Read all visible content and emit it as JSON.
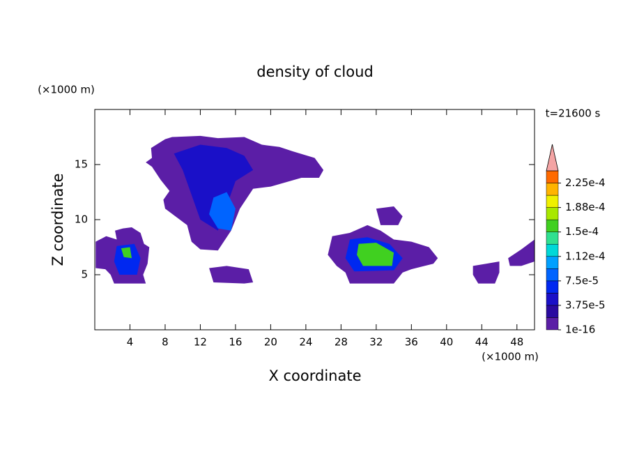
{
  "chart_data": {
    "type": "contour",
    "title": "density of cloud",
    "x_label": "X coordinate",
    "y_label": "Z coordinate",
    "x_unit": "(×1000 m)",
    "y_unit": "(×1000 m)",
    "time_label": "t=21600 s",
    "xlim": [
      0,
      50
    ],
    "ylim": [
      0,
      20
    ],
    "xticks": [
      4,
      8,
      12,
      16,
      20,
      24,
      28,
      32,
      36,
      40,
      44,
      48
    ],
    "yticks": [
      5,
      10,
      15
    ],
    "colorbar": {
      "levels": [
        1e-16,
        1.875e-05,
        3.75e-05,
        5.625e-05,
        7.5e-05,
        9.375e-05,
        0.0001125,
        0.00013125,
        0.00015,
        0.00016875,
        0.0001875,
        0.00020625,
        0.000225,
        0.00024375
      ],
      "colors": [
        "#5b1ea6",
        "#2a0aa0",
        "#1a10c8",
        "#0028f0",
        "#0064ff",
        "#00a0ff",
        "#00d8d8",
        "#30e090",
        "#40d020",
        "#a8e800",
        "#f0f000",
        "#ffb400",
        "#ff6a00"
      ],
      "over_color": "#f4a4a4",
      "ticks": [
        1e-16,
        {
          "value": 3.75e-05,
          "label": "3.75e-5"
        },
        {
          "value": 7.5e-05,
          "label": "7.5e-5"
        },
        {
          "value": 0.0001125,
          "label": "1.12e-4"
        },
        {
          "value": 0.00015,
          "label": "1.5e-4"
        },
        {
          "value": 0.0001875,
          "label": "1.88e-4"
        },
        {
          "value": 0.000225,
          "label": "2.25e-4"
        }
      ]
    },
    "contours": [
      {
        "level": 0,
        "x": [
          1.3,
          2.5,
          2.3,
          3.2,
          4.2,
          5.2,
          5.6,
          6.2,
          6,
          5.5,
          5.8,
          4.5,
          2.2,
          1.8,
          1.2,
          0.1,
          0.1
        ],
        "y": [
          8.5,
          8.2,
          9,
          9.2,
          9.3,
          8.8,
          7.8,
          7.5,
          6,
          5,
          4.2,
          4.2,
          4.2,
          5,
          5.5,
          5.6,
          8
        ]
      },
      {
        "level": 3,
        "x": [
          2.5,
          4.5,
          5.2,
          4.8,
          2.8,
          2.2
        ],
        "y": [
          7.6,
          7.8,
          6.5,
          5,
          5,
          6.2
        ]
      },
      {
        "level": 8,
        "x": [
          3,
          4,
          4.2,
          3.3
        ],
        "y": [
          7.4,
          7.5,
          6.5,
          6.6
        ]
      },
      {
        "level": 0,
        "x": [
          5.8,
          6.5,
          6.4,
          8,
          8.8,
          12,
          14,
          17,
          19,
          21,
          22.5,
          25,
          26,
          25.5,
          23.5,
          20,
          18,
          16.5,
          15.5,
          14,
          12,
          11,
          10.5,
          8,
          7.8,
          8.5,
          7.5,
          6.5
        ],
        "y": [
          15.2,
          15.6,
          16.5,
          17.3,
          17.5,
          17.6,
          17.4,
          17.5,
          16.8,
          16.6,
          16.2,
          15.6,
          14.5,
          13.8,
          13.8,
          13,
          12.8,
          11,
          9,
          7.2,
          7.3,
          8,
          9.5,
          11,
          11.8,
          12.6,
          13.6,
          14.8
        ]
      },
      {
        "level": 2,
        "x": [
          9,
          12,
          15,
          17,
          18,
          16,
          14,
          12,
          10
        ],
        "y": [
          16,
          16.8,
          16.5,
          15.8,
          14.5,
          13.5,
          9,
          10,
          14.5
        ]
      },
      {
        "level": 4,
        "x": [
          13.5,
          15,
          16,
          15.5,
          14,
          13
        ],
        "y": [
          12,
          12.5,
          11,
          9,
          9.2,
          10.5
        ]
      },
      {
        "level": 0,
        "x": [
          27,
          29,
          31,
          32.5,
          34,
          36,
          38,
          39,
          38.5,
          36,
          35,
          34,
          33.5,
          29,
          28.5,
          27.5,
          26.5
        ],
        "y": [
          8.5,
          8.8,
          9.5,
          9,
          8.2,
          8,
          7.5,
          6.5,
          6,
          5.5,
          5.2,
          4.2,
          4.2,
          4.2,
          5.2,
          5.8,
          6.8
        ]
      },
      {
        "level": 3,
        "x": [
          29,
          31,
          33.5,
          35,
          34,
          29.5,
          28.5
        ],
        "y": [
          8.2,
          8.4,
          7.8,
          6.5,
          5.4,
          5.3,
          6.5
        ]
      },
      {
        "level": 8,
        "x": [
          30,
          32,
          34,
          33.8,
          30.5,
          29.8
        ],
        "y": [
          7.8,
          7.9,
          7,
          5.8,
          5.8,
          6.8
        ]
      },
      {
        "level": 0,
        "x": [
          43,
          44.5,
          46,
          46,
          45.5,
          43.6,
          43
        ],
        "y": [
          5.8,
          6,
          6.2,
          5.2,
          4.2,
          4.2,
          5
        ]
      },
      {
        "level": 0,
        "x": [
          13,
          15,
          17.5,
          18,
          17,
          13.5
        ],
        "y": [
          5.6,
          5.8,
          5.5,
          4.3,
          4.2,
          4.3
        ]
      },
      {
        "level": 0,
        "x": [
          47,
          48.5,
          50,
          50,
          48.5,
          47.2
        ],
        "y": [
          6.5,
          7.3,
          8.2,
          6.2,
          5.8,
          5.8
        ]
      },
      {
        "level": 0,
        "x": [
          32,
          34,
          35,
          34.5,
          32.5
        ],
        "y": [
          11,
          11.2,
          10.3,
          9.5,
          9.5
        ]
      }
    ]
  }
}
